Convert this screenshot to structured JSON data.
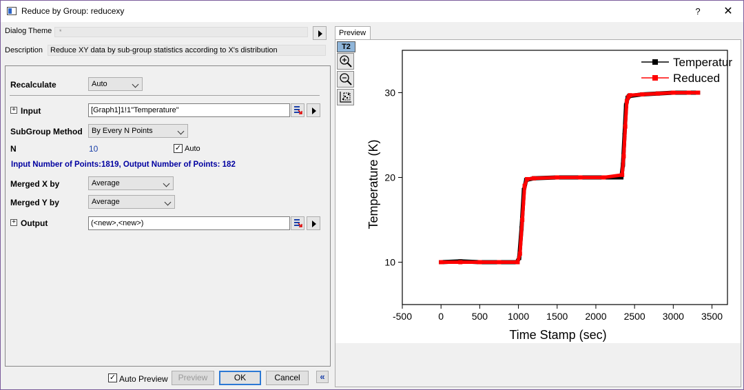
{
  "window": {
    "title": "Reduce by Group: reducexy",
    "help": "?",
    "close": "✕"
  },
  "theme": {
    "label": "Dialog Theme",
    "value": "*"
  },
  "description": {
    "label": "Description",
    "value": "Reduce XY data by sub-group statistics according to X's distribution"
  },
  "form": {
    "recalculate": {
      "label": "Recalculate",
      "value": "Auto"
    },
    "input": {
      "label": "Input",
      "value": "[Graph1]1!1\"Temperature\""
    },
    "subgroup": {
      "label": "SubGroup Method",
      "value": "By Every N Points"
    },
    "n": {
      "label": "N",
      "value": "10",
      "auto_label": "Auto",
      "auto_checked": true
    },
    "info": "Input Number of Points:1819, Output Number of Points: 182",
    "merged_x": {
      "label": "Merged X by",
      "value": "Average"
    },
    "merged_y": {
      "label": "Merged Y by",
      "value": "Average"
    },
    "output": {
      "label": "Output",
      "value": "(<new>,<new>)"
    }
  },
  "footer": {
    "auto_preview_label": "Auto Preview",
    "auto_preview_checked": true,
    "preview_label": "Preview",
    "ok_label": "OK",
    "cancel_label": "Cancel",
    "collapse": "«"
  },
  "preview": {
    "tab_label": "Preview",
    "layer_badge": "T2"
  },
  "colors": {
    "series1": "#000000",
    "series2": "#ff0000",
    "info_text": "#0000a0",
    "accent": "#2b78d4"
  },
  "chart_data": {
    "type": "line",
    "title": "",
    "xlabel": "Time Stamp (sec)",
    "ylabel": "Temperature (K)",
    "xlim": [
      -500,
      3700
    ],
    "ylim": [
      5,
      35
    ],
    "xticks": [
      -500,
      0,
      500,
      1000,
      1500,
      2000,
      2500,
      3000,
      3500
    ],
    "yticks": [
      10,
      20,
      30
    ],
    "legend_position": "top-right",
    "series": [
      {
        "name": "Temperatur",
        "color": "#000000",
        "x": [
          0,
          250,
          500,
          750,
          980,
          1010,
          1040,
          1070,
          1100,
          1200,
          1500,
          1800,
          2100,
          2330,
          2350,
          2370,
          2390,
          2410,
          2430,
          2600,
          2800,
          3000,
          3200,
          3320
        ],
        "y": [
          10,
          10.1,
          10,
          10,
          10,
          10.5,
          14,
          18.5,
          19.7,
          19.9,
          20,
          20,
          20,
          20,
          21.5,
          25,
          28.5,
          29.4,
          29.6,
          29.8,
          29.9,
          30,
          30,
          30
        ]
      },
      {
        "name": "Reduced",
        "color": "#ff0000",
        "x": [
          0,
          250,
          500,
          750,
          990,
          1020,
          1050,
          1080,
          1110,
          1200,
          1500,
          1800,
          2100,
          2340,
          2360,
          2380,
          2400,
          2420,
          2440,
          2600,
          2800,
          3000,
          3200,
          3320
        ],
        "y": [
          10,
          10,
          10,
          10,
          10,
          11,
          15,
          19,
          19.8,
          19.9,
          20,
          20,
          20,
          20.3,
          22.5,
          26,
          29,
          29.5,
          29.7,
          29.8,
          29.9,
          30,
          30,
          30
        ]
      }
    ]
  }
}
